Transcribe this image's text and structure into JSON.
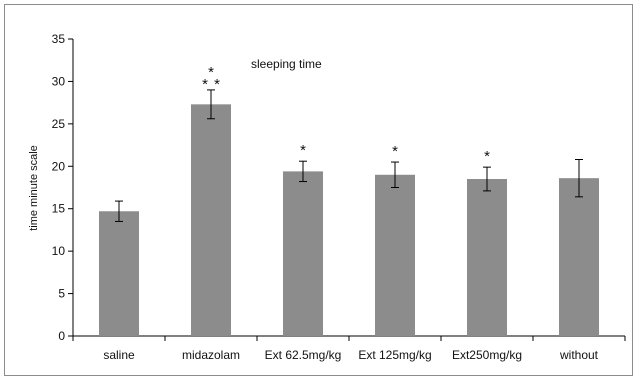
{
  "chart_data": {
    "type": "bar",
    "title": "sleeping time",
    "ylabel": "time minute scale",
    "xlabel": "",
    "ylim": [
      0,
      35
    ],
    "yticks": [
      0,
      5,
      10,
      15,
      20,
      25,
      30,
      35
    ],
    "grid": false,
    "categories": [
      "saline",
      "midazolam",
      "Ext 62.5mg/kg",
      "Ext 125mg/kg",
      "Ext250mg/kg",
      "without"
    ],
    "values": [
      14.7,
      27.3,
      19.4,
      19.0,
      18.5,
      18.6
    ],
    "errors": [
      1.2,
      1.7,
      1.2,
      1.5,
      1.4,
      2.2
    ],
    "significance": [
      "",
      "* * *",
      "*",
      "*",
      "*",
      ""
    ],
    "bar_color": "#8c8c8c"
  }
}
